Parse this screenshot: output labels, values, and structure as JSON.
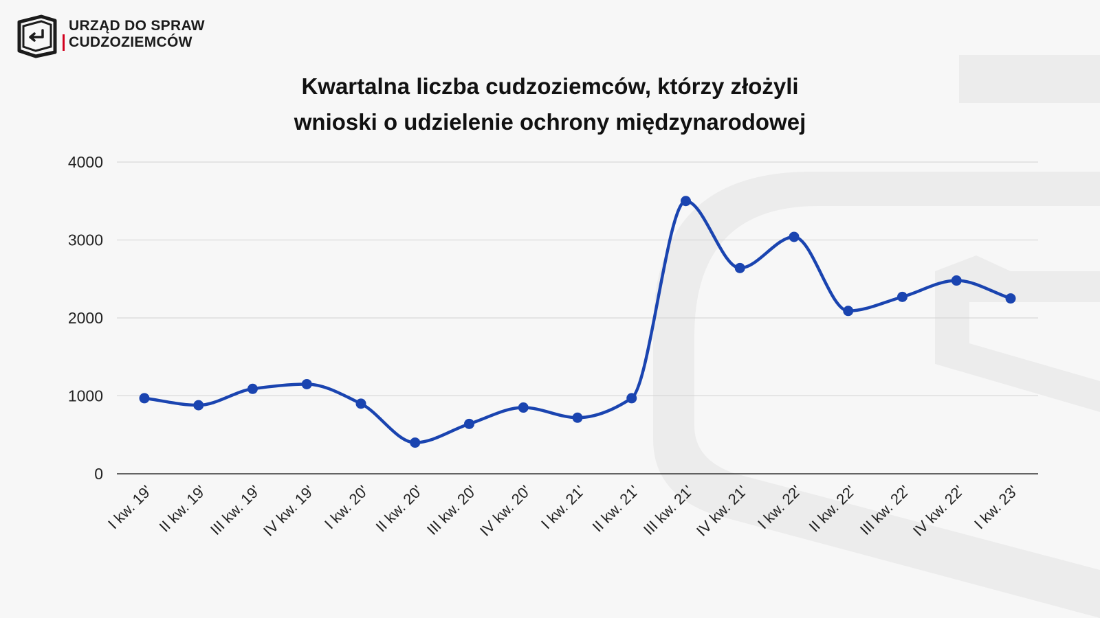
{
  "logo": {
    "line1": "URZĄD DO SPRAW",
    "line2": "CUDZOZIEMCÓW",
    "accent_color": "#d2001e"
  },
  "chart_data": {
    "type": "line",
    "title_line1": "Kwartalna liczba cudzoziemców, którzy złożyli",
    "title_line2": "wnioski o udzielenie ochrony międzynarodowej",
    "xlabel": "",
    "ylabel": "",
    "ylim": [
      0,
      4000
    ],
    "yticks": [
      0,
      1000,
      2000,
      3000,
      4000
    ],
    "grid": true,
    "legend": "none",
    "smooth": true,
    "line_color": "#1a44b0",
    "categories": [
      "I kw. 19'",
      "II kw. 19'",
      "III kw. 19'",
      "IV kw. 19'",
      "I kw. 20'",
      "II kw. 20'",
      "III kw. 20'",
      "IV kw. 20'",
      "I kw. 21'",
      "II kw. 21'",
      "III kw. 21'",
      "IV kw. 21'",
      "I kw. 22'",
      "II kw. 22'",
      "III kw. 22'",
      "IV kw. 22'",
      "I kw. 23'"
    ],
    "values": [
      970,
      880,
      1090,
      1150,
      900,
      400,
      640,
      850,
      720,
      970,
      3500,
      2640,
      3040,
      2090,
      2270,
      2480,
      2250
    ]
  }
}
